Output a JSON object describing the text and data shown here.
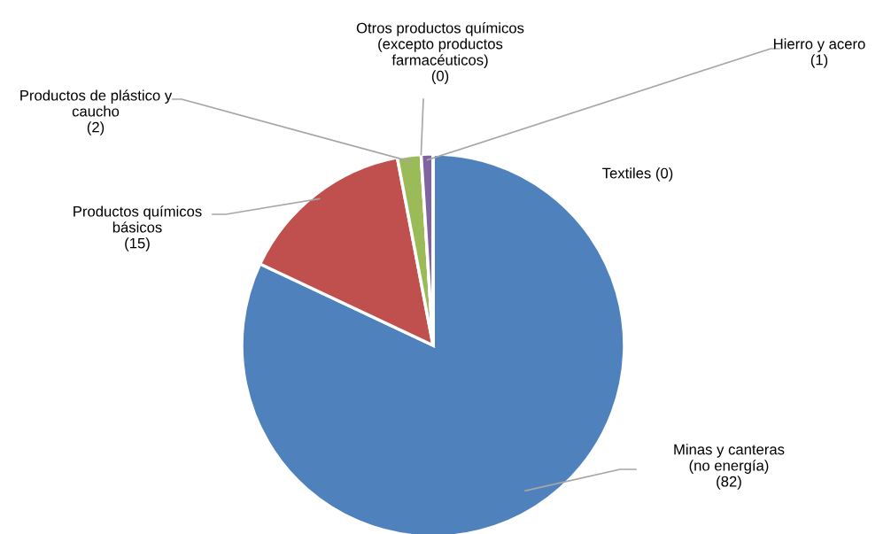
{
  "chart_data": {
    "type": "pie",
    "categories": [
      "Minas y canteras\n(no energía)",
      "Productos químicos\nbásicos",
      "Productos de plástico y\ncaucho",
      "Otros productos químicos\n(excepto productos\nfarmacéuticos)",
      "Hierro y acero",
      "Textiles"
    ],
    "values": [
      82,
      15,
      2,
      0,
      1,
      0
    ],
    "colors": [
      "#4f81bd",
      "#c0504d",
      "#9bbb59",
      "#4bacc6",
      "#8064a2",
      "#f79646"
    ],
    "value_labels": [
      "(82)",
      "(15)",
      "(2)",
      "(0)",
      "(1)",
      "(0)"
    ],
    "legend": false
  }
}
